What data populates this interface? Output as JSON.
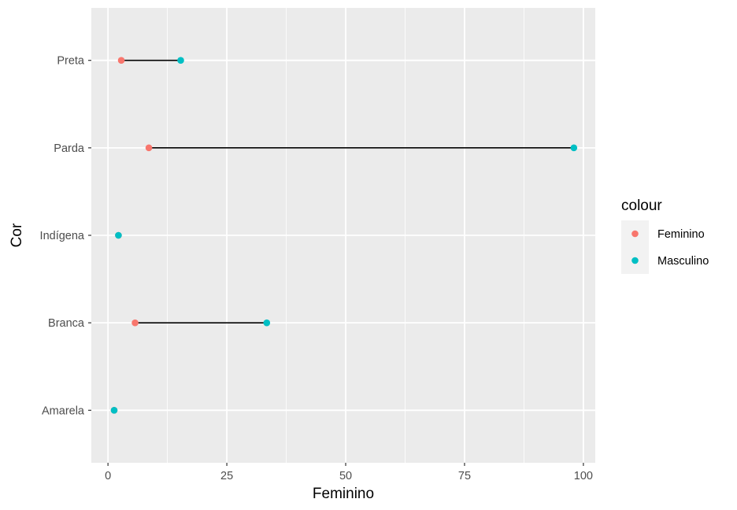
{
  "chart_data": {
    "type": "dumbbell",
    "title": "",
    "xlabel": "Feminino",
    "ylabel": "Cor",
    "xlim": [
      -3.5,
      102.5
    ],
    "x_ticks": [
      0,
      25,
      50,
      75,
      100
    ],
    "x_tick_labels": [
      "0",
      "25",
      "50",
      "75",
      "100"
    ],
    "categories": [
      "Amarela",
      "Branca",
      "Indígena",
      "Parda",
      "Preta"
    ],
    "grid": true,
    "legend": {
      "title": "colour",
      "position": "right",
      "entries": [
        {
          "name": "Feminino",
          "color": "#F8766D"
        },
        {
          "name": "Masculino",
          "color": "#00BFC4"
        }
      ]
    },
    "segment_color": "#000000",
    "series": [
      {
        "name": "Feminino",
        "color": "#F8766D",
        "values": [
          1.3,
          5.7,
          2.2,
          8.6,
          2.8
        ]
      },
      {
        "name": "Masculino",
        "color": "#00BFC4",
        "values": [
          1.3,
          33.4,
          2.2,
          98.0,
          15.3
        ]
      }
    ]
  },
  "colors": {
    "panel_background": "#EBEBEB",
    "grid_line": "#FFFFFF",
    "axis_tick": "#333333"
  }
}
